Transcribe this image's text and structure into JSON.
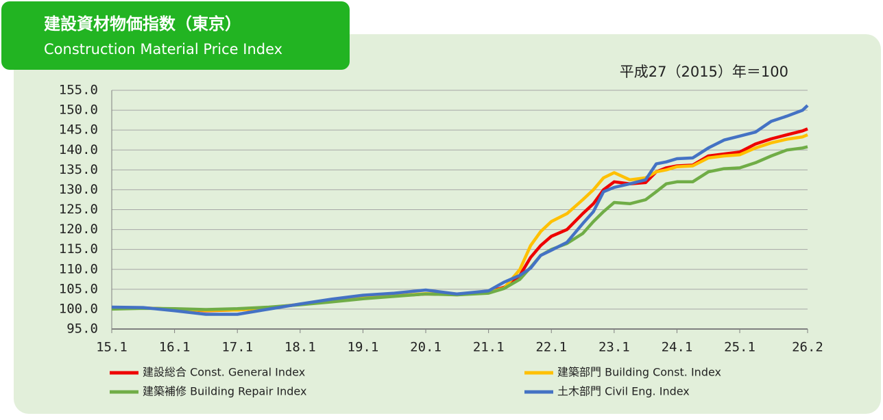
{
  "chart_data": {
    "type": "line",
    "title": "建設資材物価指数（東京）",
    "subtitle": "Construction Material Price Index",
    "note": "平成27（2015）年＝100",
    "x": [
      15,
      15.5,
      16,
      16.5,
      17,
      17.5,
      18,
      18.5,
      19,
      19.5,
      20,
      20.5,
      21,
      21.25,
      21.5,
      21.67,
      21.83,
      22,
      22.25,
      22.5,
      22.67,
      22.83,
      23,
      23.25,
      23.5,
      23.67,
      23.83,
      24,
      24.25,
      24.5,
      24.75,
      25,
      25.25,
      25.5,
      25.75,
      26,
      26.08
    ],
    "xlim": [
      15,
      26.08
    ],
    "xticks": [
      {
        "value": 15,
        "label": "15.1"
      },
      {
        "value": 16,
        "label": "16.1"
      },
      {
        "value": 17,
        "label": "17.1"
      },
      {
        "value": 18,
        "label": "18.1"
      },
      {
        "value": 19,
        "label": "19.1"
      },
      {
        "value": 20,
        "label": "20.1"
      },
      {
        "value": 21,
        "label": "21.1"
      },
      {
        "value": 22,
        "label": "22.1"
      },
      {
        "value": 23,
        "label": "23.1"
      },
      {
        "value": 24,
        "label": "24.1"
      },
      {
        "value": 25,
        "label": "25.1"
      },
      {
        "value": 26.08,
        "label": "26.2"
      }
    ],
    "ylim": [
      95,
      155
    ],
    "yticks": [
      {
        "value": 95,
        "label": "95.0"
      },
      {
        "value": 100,
        "label": "100.0"
      },
      {
        "value": 105,
        "label": "105.0"
      },
      {
        "value": 110,
        "label": "110.0"
      },
      {
        "value": 115,
        "label": "115.0"
      },
      {
        "value": 120,
        "label": "120.0"
      },
      {
        "value": 125,
        "label": "125.0"
      },
      {
        "value": 130,
        "label": "130.0"
      },
      {
        "value": 135,
        "label": "135.0"
      },
      {
        "value": 140,
        "label": "140.0"
      },
      {
        "value": 145,
        "label": "145.0"
      },
      {
        "value": 150,
        "label": "150.0"
      },
      {
        "value": 155,
        "label": "155.0"
      }
    ],
    "grid": true,
    "series": [
      {
        "name": "建設総合 Const. General Index",
        "color": "#ee0000",
        "values": [
          100.2,
          100.3,
          100.0,
          99.6,
          99.8,
          100.3,
          101.2,
          102.0,
          102.8,
          103.3,
          103.8,
          103.7,
          104.3,
          105.5,
          108.5,
          113,
          116,
          118.3,
          120,
          124,
          126.5,
          130,
          132,
          131.5,
          131.8,
          134.5,
          135.5,
          136,
          136.2,
          138.5,
          139,
          139.5,
          141.5,
          142.8,
          143.8,
          144.8,
          145.3
        ]
      },
      {
        "name": "建築部門 Building Const. Index",
        "color": "#ffc000",
        "values": [
          100.3,
          100.3,
          100.0,
          99.7,
          99.8,
          100.4,
          101.2,
          102.0,
          102.8,
          103.3,
          103.9,
          103.6,
          104.2,
          105.3,
          110,
          116,
          119.5,
          122,
          124,
          127.5,
          130,
          133,
          134.3,
          132.5,
          133,
          134.5,
          135,
          135.8,
          136,
          138,
          138.5,
          138.8,
          140.5,
          141.8,
          142.7,
          143.3,
          143.8
        ]
      },
      {
        "name": "建築補修 Building Repair Index",
        "color": "#70ad47",
        "values": [
          100.0,
          100.2,
          100.1,
          99.9,
          100.1,
          100.5,
          101.1,
          101.8,
          102.6,
          103.2,
          103.8,
          103.6,
          104.0,
          105.2,
          107.5,
          110.5,
          113.5,
          115,
          116.5,
          119,
          122,
          124.5,
          126.8,
          126.5,
          127.5,
          129.5,
          131.5,
          132,
          132,
          134.5,
          135.3,
          135.5,
          136.8,
          138.5,
          140,
          140.5,
          140.8
        ]
      },
      {
        "name": "土木部門 Civil Eng. Index",
        "color": "#4472c4",
        "values": [
          100.5,
          100.4,
          99.6,
          98.7,
          98.7,
          100.0,
          101.3,
          102.5,
          103.5,
          104.0,
          104.8,
          103.8,
          104.6,
          106.8,
          108.5,
          110.3,
          113.5,
          114.8,
          116.8,
          121.5,
          124.5,
          129.5,
          130.6,
          131.5,
          132.5,
          136.5,
          137,
          137.8,
          138,
          140.5,
          142.5,
          143.5,
          144.5,
          147.2,
          148.5,
          150,
          151.2
        ]
      }
    ]
  }
}
